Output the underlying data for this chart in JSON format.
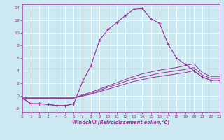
{
  "xlabel": "Windchill (Refroidissement éolien,°C)",
  "bg_color": "#cce8f0",
  "line_color": "#993399",
  "grid_color": "#ffffff",
  "xmin": 0,
  "xmax": 23,
  "ymin": -2.5,
  "ymax": 14.5,
  "lines": [
    {
      "x": [
        0,
        1,
        2,
        3,
        4,
        5,
        6,
        7,
        8,
        9,
        10,
        11,
        12,
        13,
        14,
        15,
        16,
        17,
        18,
        19,
        20,
        21,
        22,
        23
      ],
      "y": [
        -0.3,
        -1.2,
        -1.2,
        -1.3,
        -1.5,
        -1.5,
        -1.2,
        2.2,
        4.8,
        8.8,
        10.5,
        11.6,
        12.7,
        13.7,
        13.8,
        12.2,
        11.5,
        8.2,
        6.0,
        5.0,
        4.0,
        3.0,
        2.5,
        2.5
      ],
      "has_marker": true
    },
    {
      "x": [
        0,
        1,
        2,
        3,
        4,
        5,
        6
      ],
      "y": [
        -0.3,
        -1.2,
        -1.2,
        -1.3,
        -1.5,
        -1.5,
        -1.2
      ],
      "has_marker": true
    },
    {
      "x": [
        0,
        6,
        7,
        8,
        9,
        10,
        11,
        12,
        13,
        14,
        15,
        16,
        17,
        18,
        19,
        20,
        21,
        22,
        23
      ],
      "y": [
        -0.3,
        -0.3,
        0.0,
        0.3,
        0.7,
        1.1,
        1.5,
        1.9,
        2.3,
        2.6,
        2.9,
        3.1,
        3.3,
        3.5,
        3.7,
        4.0,
        3.0,
        2.5,
        2.5
      ],
      "has_marker": false
    },
    {
      "x": [
        0,
        6,
        7,
        8,
        9,
        10,
        11,
        12,
        13,
        14,
        15,
        16,
        17,
        18,
        19,
        20,
        21,
        22,
        23
      ],
      "y": [
        -0.3,
        -0.3,
        0.1,
        0.4,
        0.9,
        1.4,
        1.8,
        2.3,
        2.7,
        3.0,
        3.3,
        3.6,
        3.8,
        4.0,
        4.2,
        4.5,
        3.3,
        2.8,
        2.8
      ],
      "has_marker": false
    },
    {
      "x": [
        0,
        6,
        7,
        8,
        9,
        10,
        11,
        12,
        13,
        14,
        15,
        16,
        17,
        18,
        19,
        20,
        21,
        22,
        23
      ],
      "y": [
        -0.3,
        -0.3,
        0.2,
        0.6,
        1.1,
        1.6,
        2.1,
        2.6,
        3.1,
        3.5,
        3.8,
        4.1,
        4.3,
        4.5,
        4.8,
        5.1,
        3.7,
        3.1,
        3.1
      ],
      "has_marker": false
    }
  ],
  "yticks": [
    -2,
    0,
    2,
    4,
    6,
    8,
    10,
    12,
    14
  ],
  "xticks": [
    0,
    1,
    2,
    3,
    4,
    5,
    6,
    7,
    8,
    9,
    10,
    11,
    12,
    13,
    14,
    15,
    16,
    17,
    18,
    19,
    20,
    21,
    22,
    23
  ]
}
